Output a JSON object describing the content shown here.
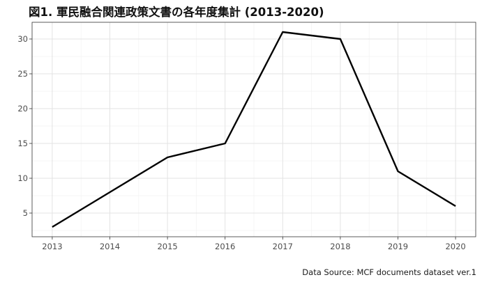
{
  "chart_data": {
    "type": "line",
    "title": "図1. 軍民融合関連政策文書の各年度集計 (2013-2020)",
    "xlabel": "",
    "ylabel": "",
    "caption": "Data Source: MCF documents dataset ver.1",
    "x": [
      2013,
      2014,
      2015,
      2016,
      2017,
      2018,
      2019,
      2020
    ],
    "series": [
      {
        "values": [
          3,
          8,
          13,
          15,
          31,
          30,
          11,
          6
        ],
        "color": "#000000"
      }
    ],
    "xticks": [
      2013,
      2014,
      2015,
      2016,
      2017,
      2018,
      2019,
      2020
    ],
    "xtick_labels": [
      "2013",
      "2014",
      "2015",
      "2016",
      "2017",
      "2018",
      "2019",
      "2020"
    ],
    "yticks": [
      5,
      10,
      15,
      20,
      25,
      30
    ],
    "ytick_labels": [
      "5",
      "10",
      "15",
      "20",
      "25",
      "30"
    ],
    "xlim": [
      2012.65,
      2020.35
    ],
    "ylim": [
      1.6,
      32.4
    ],
    "grid": true,
    "legend": "none"
  }
}
